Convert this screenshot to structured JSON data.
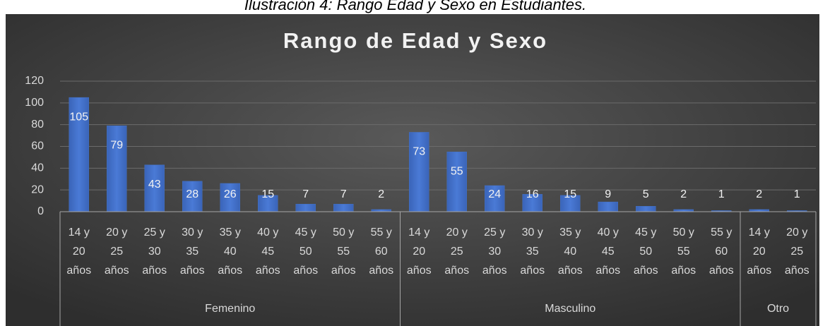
{
  "caption": "Ilustración 4: Rango Edad y Sexo en Estudiantes.",
  "chart_data": {
    "type": "bar",
    "title": "Rango de Edad y Sexo",
    "color": "#4472c4",
    "ylim": [
      0,
      120
    ],
    "yticks": [
      0,
      20,
      40,
      60,
      80,
      100,
      120
    ],
    "grid": true,
    "groups": [
      {
        "name": "Femenino",
        "categories": [
          "14 y 20 años",
          "20 y 25 años",
          "25 y 30 años",
          "30 y 35 años",
          "35 y 40 años",
          "40 y 45 años",
          "45 y 50 años",
          "50 y 55 años",
          "55 y 60 años"
        ],
        "values": [
          105,
          79,
          43,
          28,
          26,
          15,
          7,
          7,
          2
        ]
      },
      {
        "name": "Masculino",
        "categories": [
          "14 y 20 años",
          "20 y 25 años",
          "25 y 30 años",
          "30 y 35 años",
          "35 y 40 años",
          "40 y 45 años",
          "45 y 50 años",
          "50 y 55 años",
          "55 y 60 años"
        ],
        "values": [
          73,
          55,
          24,
          16,
          15,
          9,
          5,
          2,
          1
        ]
      },
      {
        "name": "Otro",
        "categories": [
          "14 y 20 años",
          "20 y 25 años"
        ],
        "values": [
          2,
          1
        ]
      }
    ]
  }
}
